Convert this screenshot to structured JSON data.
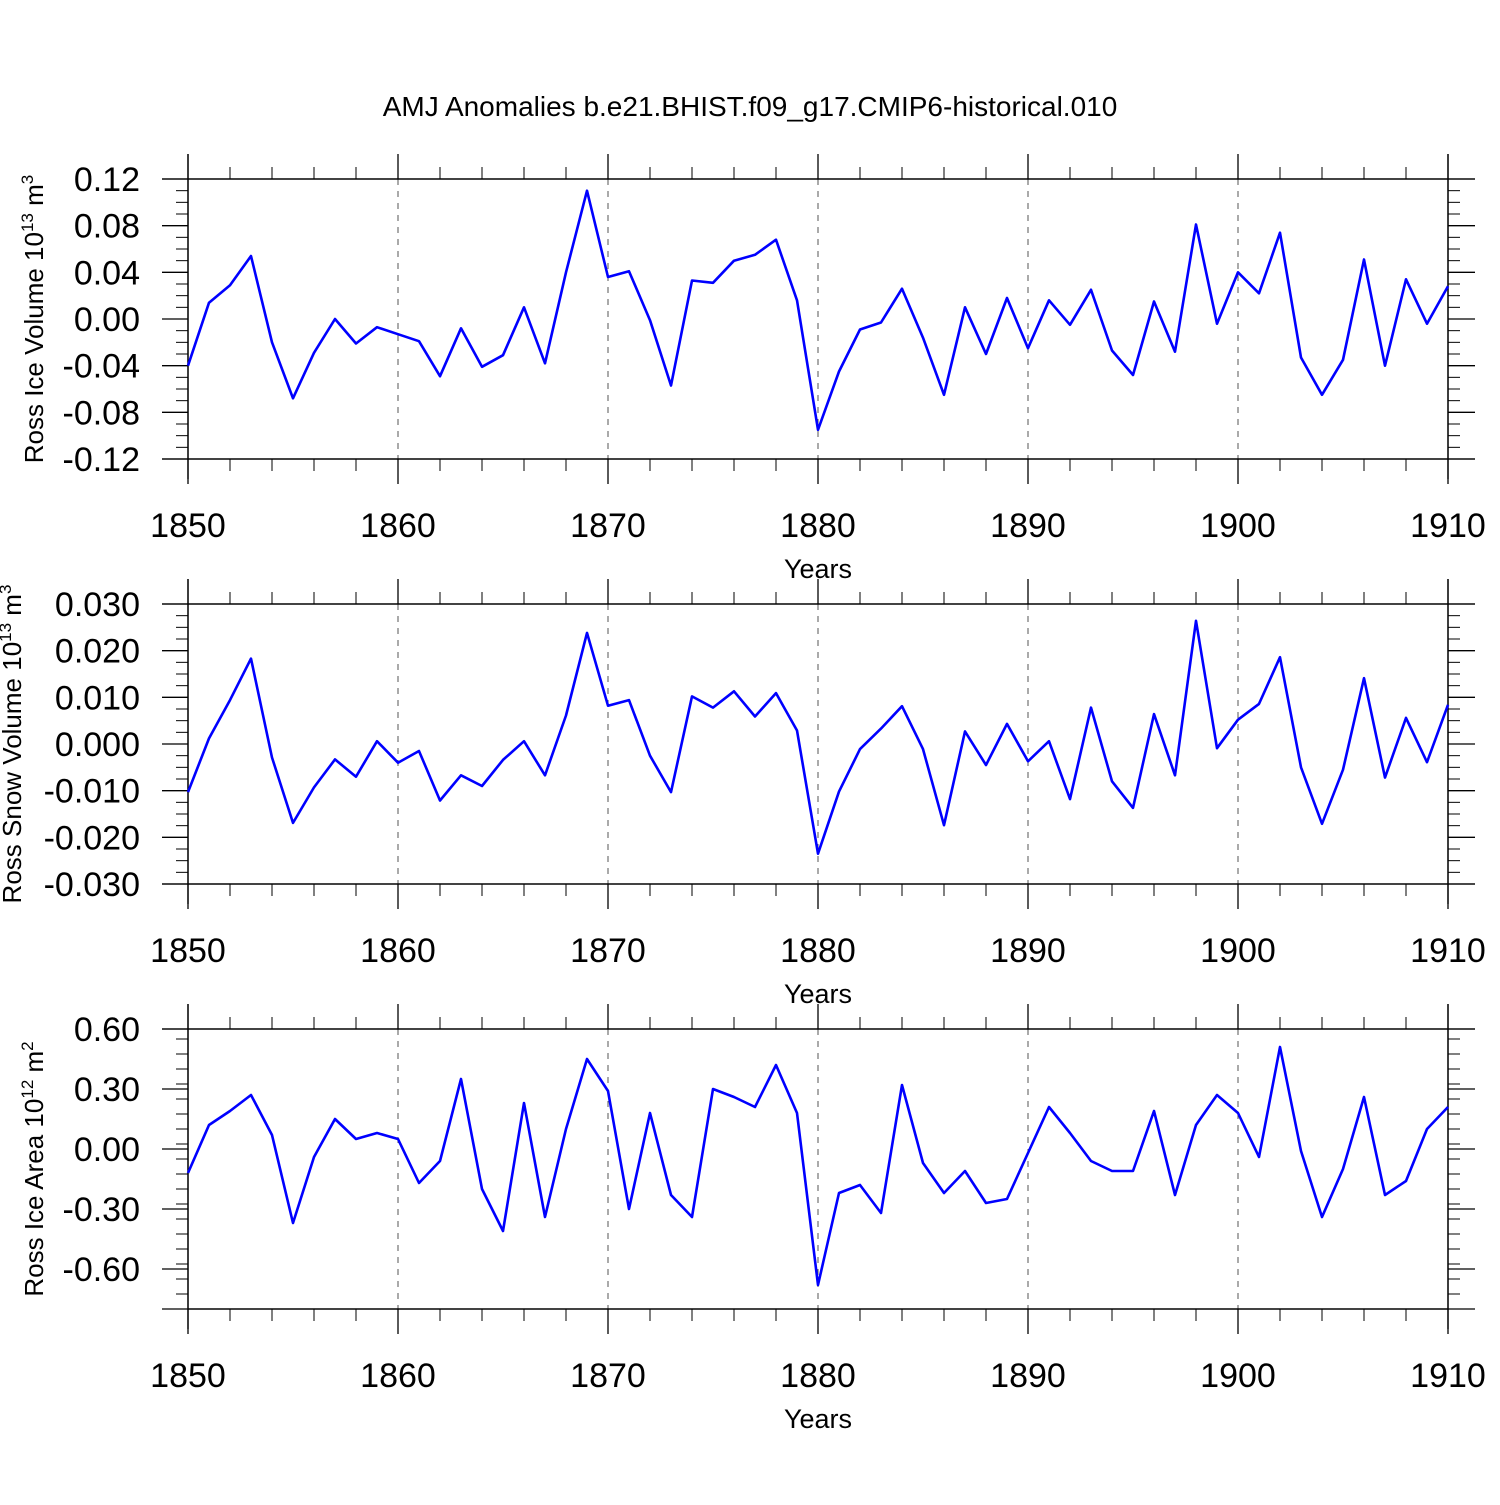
{
  "title": "AMJ Anomalies b.e21.BHIST.f09_g17.CMIP6-historical.010",
  "line_color": "#0000ff",
  "chart_data": [
    {
      "type": "line",
      "ylabel_main": "Ross Ice Volume 10",
      "ylabel_exp": "13",
      "ylabel_unit": " m",
      "ylabel_unit_exp": "3",
      "xlabel": "Years",
      "xlim": [
        1850,
        1910
      ],
      "ylim": [
        -0.12,
        0.12
      ],
      "xticks": [
        "1850",
        "1860",
        "1870",
        "1880",
        "1890",
        "1900",
        "1910"
      ],
      "yticks": [
        "0.12",
        "0.08",
        "0.04",
        "0.00",
        "-0.04",
        "-0.08",
        "-0.12"
      ],
      "x": [
        1850,
        1851,
        1852,
        1853,
        1854,
        1855,
        1856,
        1857,
        1858,
        1859,
        1860,
        1861,
        1862,
        1863,
        1864,
        1865,
        1866,
        1867,
        1868,
        1869,
        1870,
        1871,
        1872,
        1873,
        1874,
        1875,
        1876,
        1877,
        1878,
        1879,
        1880,
        1881,
        1882,
        1883,
        1884,
        1885,
        1886,
        1887,
        1888,
        1889,
        1890,
        1891,
        1892,
        1893,
        1894,
        1895,
        1896,
        1897,
        1898,
        1899,
        1900,
        1901,
        1902,
        1903,
        1904,
        1905,
        1906,
        1907,
        1908,
        1909,
        1910
      ],
      "values": [
        -0.04,
        0.014,
        0.029,
        0.054,
        -0.02,
        -0.068,
        -0.029,
        0.0,
        -0.021,
        -0.007,
        -0.013,
        -0.019,
        -0.049,
        -0.008,
        -0.041,
        -0.031,
        0.01,
        -0.038,
        0.04,
        0.11,
        0.036,
        0.041,
        -0.001,
        -0.057,
        0.033,
        0.031,
        0.05,
        0.055,
        0.068,
        0.016,
        -0.095,
        -0.045,
        -0.009,
        -0.003,
        0.026,
        -0.016,
        -0.065,
        0.01,
        -0.03,
        0.018,
        -0.025,
        0.016,
        -0.005,
        0.025,
        -0.027,
        -0.048,
        0.015,
        -0.028,
        0.081,
        -0.004,
        0.04,
        0.022,
        0.074,
        -0.033,
        -0.065,
        -0.035,
        0.051,
        -0.04,
        0.034,
        -0.004,
        0.028
      ]
    },
    {
      "type": "line",
      "ylabel_main": "Ross Snow Volume 10",
      "ylabel_exp": "13",
      "ylabel_unit": " m",
      "ylabel_unit_exp": "3",
      "xlabel": "Years",
      "xlim": [
        1850,
        1910
      ],
      "ylim": [
        -0.03,
        0.03
      ],
      "xticks": [
        "1850",
        "1860",
        "1870",
        "1880",
        "1890",
        "1900",
        "1910"
      ],
      "yticks": [
        "0.030",
        "0.020",
        "0.010",
        "0.000",
        "-0.010",
        "-0.020",
        "-0.030"
      ],
      "x": [
        1850,
        1851,
        1852,
        1853,
        1854,
        1855,
        1856,
        1857,
        1858,
        1859,
        1860,
        1861,
        1862,
        1863,
        1864,
        1865,
        1866,
        1867,
        1868,
        1869,
        1870,
        1871,
        1872,
        1873,
        1874,
        1875,
        1876,
        1877,
        1878,
        1879,
        1880,
        1881,
        1882,
        1883,
        1884,
        1885,
        1886,
        1887,
        1888,
        1889,
        1890,
        1891,
        1892,
        1893,
        1894,
        1895,
        1896,
        1897,
        1898,
        1899,
        1900,
        1901,
        1902,
        1903,
        1904,
        1905,
        1906,
        1907,
        1908,
        1909,
        1910
      ],
      "values": [
        -0.0103,
        0.0012,
        0.0094,
        0.0183,
        -0.0029,
        -0.0169,
        -0.0093,
        -0.0033,
        -0.007,
        0.0006,
        -0.004,
        -0.0015,
        -0.0121,
        -0.0067,
        -0.009,
        -0.0034,
        0.0006,
        -0.0067,
        0.0061,
        0.0238,
        0.0082,
        0.0094,
        -0.0025,
        -0.0103,
        0.0102,
        0.0078,
        0.0113,
        0.0059,
        0.0109,
        0.0029,
        -0.0235,
        -0.0102,
        -0.0011,
        0.0033,
        0.0081,
        -0.0011,
        -0.0174,
        0.0027,
        -0.0045,
        0.0043,
        -0.0037,
        0.0006,
        -0.0118,
        0.0078,
        -0.008,
        -0.0137,
        0.0064,
        -0.0067,
        0.0264,
        -0.0009,
        0.0052,
        0.0086,
        0.0186,
        -0.005,
        -0.0171,
        -0.0055,
        0.0141,
        -0.0072,
        0.0056,
        -0.0039,
        0.0084
      ]
    },
    {
      "type": "line",
      "ylabel_main": "Ross Ice Area 10",
      "ylabel_exp": "12",
      "ylabel_unit": " m",
      "ylabel_unit_exp": "2",
      "xlabel": "Years",
      "xlim": [
        1850,
        1910
      ],
      "ylim": [
        -0.8,
        0.6
      ],
      "xticks": [
        "1850",
        "1860",
        "1870",
        "1880",
        "1890",
        "1900",
        "1910"
      ],
      "yticks": [
        "0.60",
        "0.30",
        "0.00",
        "-0.30",
        "-0.60"
      ],
      "x": [
        1850,
        1851,
        1852,
        1853,
        1854,
        1855,
        1856,
        1857,
        1858,
        1859,
        1860,
        1861,
        1862,
        1863,
        1864,
        1865,
        1866,
        1867,
        1868,
        1869,
        1870,
        1871,
        1872,
        1873,
        1874,
        1875,
        1876,
        1877,
        1878,
        1879,
        1880,
        1881,
        1882,
        1883,
        1884,
        1885,
        1886,
        1887,
        1888,
        1889,
        1890,
        1891,
        1892,
        1893,
        1894,
        1895,
        1896,
        1897,
        1898,
        1899,
        1900,
        1901,
        1902,
        1903,
        1904,
        1905,
        1906,
        1907,
        1908,
        1909,
        1910
      ],
      "values": [
        -0.12,
        0.12,
        0.19,
        0.27,
        0.07,
        -0.37,
        -0.04,
        0.15,
        0.05,
        0.08,
        0.05,
        -0.17,
        -0.06,
        0.35,
        -0.2,
        -0.41,
        0.23,
        -0.34,
        0.1,
        0.45,
        0.29,
        -0.3,
        0.18,
        -0.23,
        -0.34,
        0.3,
        0.26,
        0.21,
        0.42,
        0.18,
        -0.68,
        -0.22,
        -0.18,
        -0.32,
        0.32,
        -0.07,
        -0.22,
        -0.11,
        -0.27,
        -0.25,
        -0.02,
        0.21,
        0.08,
        -0.06,
        -0.11,
        -0.11,
        0.19,
        -0.23,
        0.12,
        0.27,
        0.18,
        -0.04,
        0.51,
        -0.01,
        -0.34,
        -0.1,
        0.26,
        -0.23,
        -0.16,
        0.1,
        0.21
      ]
    }
  ]
}
